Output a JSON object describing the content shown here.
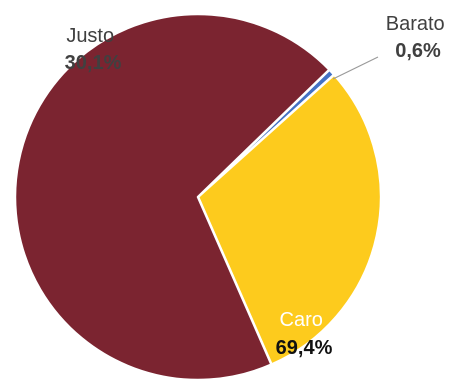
{
  "chart_data": {
    "type": "pie",
    "categories": [
      "Barato",
      "Justo",
      "Caro"
    ],
    "values": [
      0.6,
      30.1,
      69.4
    ],
    "value_labels": [
      "0,6%",
      "30,1%",
      "69,4%"
    ],
    "colors": [
      "#4472c4",
      "#fdcb1d",
      "#7b2430"
    ],
    "title": "",
    "legend": "none"
  }
}
